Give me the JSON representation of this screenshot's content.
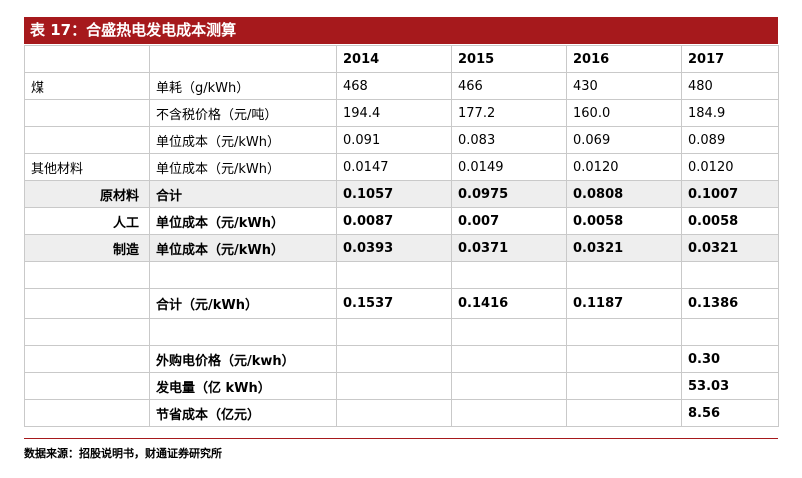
{
  "title": "表 17：合盛热电发电成本测算",
  "header": [
    "",
    "",
    "2014",
    "2015",
    "2016",
    "2017"
  ],
  "rows": [
    {
      "cat": "煤",
      "item": "单耗（g/kWh）",
      "vals": [
        "468",
        "466",
        "430",
        "480"
      ]
    },
    {
      "cat": "",
      "item": "不含税价格（元/吨）",
      "vals": [
        "194.4",
        "177.2",
        "160.0",
        "184.9"
      ]
    },
    {
      "cat": "",
      "item": "单位成本（元/kWh）",
      "vals": [
        "0.091",
        "0.083",
        "0.069",
        "0.089"
      ]
    },
    {
      "cat": "其他材料",
      "item": "单位成本（元/kWh）",
      "vals": [
        "0.0147",
        "0.0149",
        "0.0120",
        "0.0120"
      ]
    },
    {
      "cat": "原材料",
      "item": "合计",
      "vals": [
        "0.1057",
        "0.0975",
        "0.0808",
        "0.1007"
      ]
    },
    {
      "cat": "人工",
      "item": "单位成本（元/kWh）",
      "vals": [
        "0.0087",
        "0.007",
        "0.0058",
        "0.0058"
      ]
    },
    {
      "cat": "制造",
      "item": "单位成本（元/kWh）",
      "vals": [
        "0.0393",
        "0.0371",
        "0.0321",
        "0.0321"
      ]
    },
    {
      "cat": "",
      "item": "",
      "vals": [
        "",
        "",
        "",
        ""
      ]
    },
    {
      "cat": "",
      "item": "合计（元/kWh）",
      "vals": [
        "0.1537",
        "0.1416",
        "0.1187",
        "0.1386"
      ]
    },
    {
      "cat": "",
      "item": "",
      "vals": [
        "",
        "",
        "",
        ""
      ]
    },
    {
      "cat": "",
      "item": "外购电价格（元/kwh）",
      "vals": [
        "",
        "",
        "",
        "0.30"
      ]
    },
    {
      "cat": "",
      "item": "发电量（亿 kWh）",
      "vals": [
        "",
        "",
        "",
        "53.03"
      ]
    },
    {
      "cat": "",
      "item": "节省成本（亿元）",
      "vals": [
        "",
        "",
        "",
        "8.56"
      ]
    }
  ],
  "source": "数据来源：招股说明书，财通证券研究所"
}
